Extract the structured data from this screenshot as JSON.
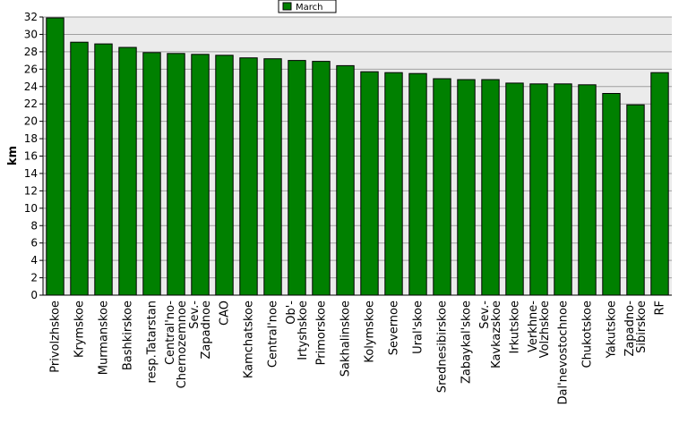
{
  "chart_data": {
    "type": "bar",
    "title": "",
    "xlabel": "",
    "ylabel": "km",
    "ylim": [
      0,
      32
    ],
    "yticks": [
      0,
      2,
      4,
      6,
      8,
      10,
      12,
      14,
      16,
      18,
      20,
      22,
      24,
      26,
      28,
      30,
      32
    ],
    "grid": true,
    "legend_position": "top-center",
    "categories": [
      [
        "Privolzhskoe"
      ],
      [
        "Krymskoe"
      ],
      [
        "Murmanskoe"
      ],
      [
        "Bashkirskoe"
      ],
      [
        "resp.Tatarstan"
      ],
      [
        "Central'no-",
        "Chernozemnoe"
      ],
      [
        "Sev.-",
        "Zapadnoe"
      ],
      [
        "CAO"
      ],
      [
        "Kamchatskoe"
      ],
      [
        "Central'noe"
      ],
      [
        "Ob'-",
        "Irtyshskoe"
      ],
      [
        "Primorskoe"
      ],
      [
        "Sakhalinskoe"
      ],
      [
        "Kolymskoe"
      ],
      [
        "Severnoe"
      ],
      [
        "Ural'skoe"
      ],
      [
        "Srednesibirskoe"
      ],
      [
        "Zabaykal'skoe"
      ],
      [
        "Sev.-",
        "Kavkazskoe"
      ],
      [
        "Irkutskoe"
      ],
      [
        "Verkhne-",
        "Volzhskoe"
      ],
      [
        "Dal'nevostochnoe"
      ],
      [
        "Chukotskoe"
      ],
      [
        "Yakutskoe"
      ],
      [
        "Zapadno-",
        "Sibirskoe"
      ],
      [
        "RF"
      ]
    ],
    "series": [
      {
        "name": "March",
        "color": "#008000",
        "values": [
          31.9,
          29.1,
          28.9,
          28.5,
          27.9,
          27.8,
          27.7,
          27.6,
          27.3,
          27.2,
          27.0,
          26.9,
          26.4,
          25.7,
          25.6,
          25.5,
          24.9,
          24.8,
          24.8,
          24.4,
          24.3,
          24.3,
          24.2,
          23.2,
          21.9,
          25.6
        ]
      }
    ],
    "colors": {
      "plot_background": "#ebebeb",
      "grid": "#a0a0a0",
      "bar": "#008000",
      "bar_outline": "#000000"
    }
  }
}
